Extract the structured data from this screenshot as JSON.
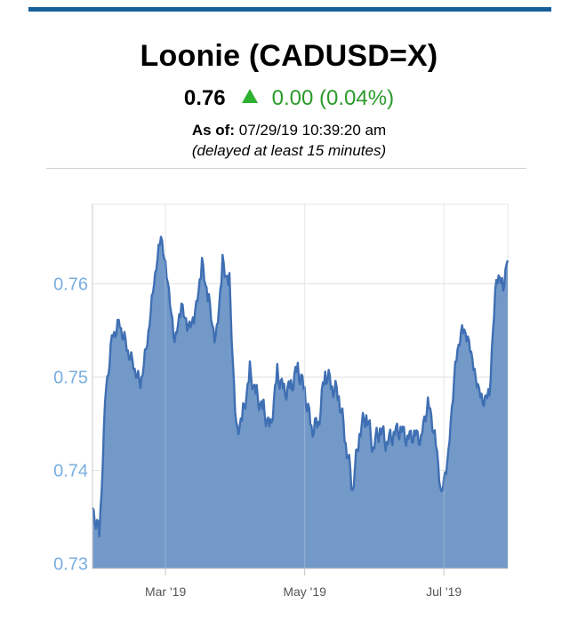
{
  "header": {
    "title": "Loonie (CADUSD=X)",
    "price": "0.76",
    "change": "0.00 (0.04%)",
    "asof_label": "As of:",
    "asof_value": "07/29/19 10:39:20 am",
    "delayed_note": "(delayed at least 15 minutes)"
  },
  "colors": {
    "accent_bar": "#155f9a",
    "up_arrow": "#2fb12f",
    "change_text": "#2a9a2a",
    "area_fill": "#7399c8",
    "line": "#3f6fb3",
    "y_tick_text": "#7aaee0"
  },
  "chart_data": {
    "type": "area",
    "title": "",
    "xlabel": "",
    "ylabel": "",
    "ylim": [
      0.7295,
      0.7685
    ],
    "xlim": [
      "2019-01-28",
      "2019-07-29"
    ],
    "y_ticks": [
      0.73,
      0.74,
      0.75,
      0.76
    ],
    "y_tick_labels": [
      "0.73",
      "0.74",
      "0.75",
      "0.76"
    ],
    "x_ticks": [
      "2019-03-01",
      "2019-05-01",
      "2019-07-01"
    ],
    "x_tick_labels": [
      "Mar '19",
      "May '19",
      "Jul '19"
    ],
    "grid": true,
    "legend": "none",
    "series": [
      {
        "x": [
          "2019-01-28",
          "2019-01-31",
          "2019-02-03",
          "2019-02-06",
          "2019-02-09",
          "2019-02-12",
          "2019-02-15",
          "2019-02-18",
          "2019-02-21",
          "2019-02-24",
          "2019-02-27",
          "2019-03-02",
          "2019-03-05",
          "2019-03-08",
          "2019-03-11",
          "2019-03-14",
          "2019-03-17",
          "2019-03-20",
          "2019-03-23",
          "2019-03-26",
          "2019-03-29",
          "2019-04-01",
          "2019-04-04",
          "2019-04-07",
          "2019-04-10",
          "2019-04-13",
          "2019-04-16",
          "2019-04-19",
          "2019-04-22",
          "2019-04-25",
          "2019-04-28",
          "2019-05-01",
          "2019-05-04",
          "2019-05-07",
          "2019-05-10",
          "2019-05-13",
          "2019-05-16",
          "2019-05-19",
          "2019-05-22",
          "2019-05-25",
          "2019-05-28",
          "2019-05-31",
          "2019-06-03",
          "2019-06-06",
          "2019-06-09",
          "2019-06-12",
          "2019-06-15",
          "2019-06-18",
          "2019-06-21",
          "2019-06-24",
          "2019-06-27",
          "2019-06-30",
          "2019-07-03",
          "2019-07-06",
          "2019-07-09",
          "2019-07-12",
          "2019-07-15",
          "2019-07-18",
          "2019-07-21",
          "2019-07-24",
          "2019-07-27",
          "2019-07-29"
        ],
        "values": [
          0.736,
          0.733,
          0.749,
          0.7545,
          0.7555,
          0.753,
          0.751,
          0.749,
          0.7535,
          0.76,
          0.765,
          0.76,
          0.7535,
          0.7575,
          0.755,
          0.7565,
          0.762,
          0.758,
          0.7535,
          0.762,
          0.76,
          0.744,
          0.746,
          0.7505,
          0.748,
          0.7465,
          0.7445,
          0.7505,
          0.7485,
          0.749,
          0.751,
          0.7485,
          0.7445,
          0.745,
          0.7505,
          0.749,
          0.748,
          0.743,
          0.738,
          0.744,
          0.746,
          0.7425,
          0.7445,
          0.743,
          0.744,
          0.7445,
          0.7435,
          0.744,
          0.7435,
          0.7475,
          0.744,
          0.7375,
          0.742,
          0.7515,
          0.7555,
          0.754,
          0.75,
          0.7475,
          0.7485,
          0.761,
          0.76,
          0.7625
        ]
      }
    ]
  }
}
